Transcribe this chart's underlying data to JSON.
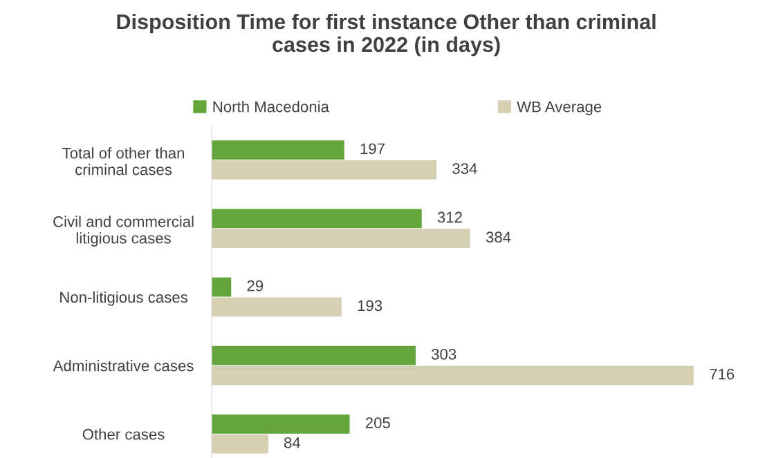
{
  "chart_data": {
    "type": "bar",
    "orientation": "horizontal",
    "title": "Disposition Time for first instance Other than criminal\ncases in 2022 (in days)",
    "categories": [
      "Total of other than\ncriminal cases",
      "Civil and commercial\nlitigious cases",
      "Non-litigious cases",
      "Administrative cases",
      "Other cases"
    ],
    "series": [
      {
        "name": "North Macedonia",
        "color": "#63a53a",
        "values": [
          197,
          312,
          29,
          303,
          205
        ]
      },
      {
        "name": "WB Average",
        "color": "#d5cfb4",
        "values": [
          334,
          384,
          193,
          716,
          84
        ]
      }
    ],
    "data_labels": true,
    "legend": "top"
  }
}
